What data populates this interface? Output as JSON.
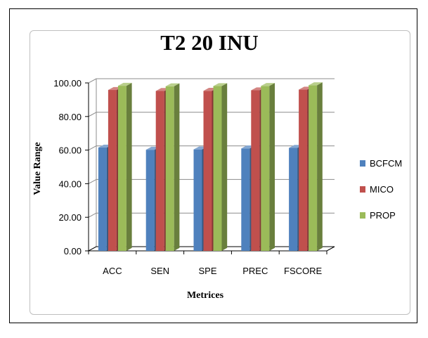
{
  "chart_data": {
    "type": "bar",
    "title": "T2 20 INU",
    "xlabel": "Metrices",
    "ylabel": "Value Range",
    "categories": [
      "ACC",
      "SEN",
      "SPE",
      "PREC",
      "FSCORE"
    ],
    "y_ticks": [
      "0.00",
      "20.00",
      "40.00",
      "60.00",
      "80.00",
      "100.00"
    ],
    "ylim": [
      0,
      100
    ],
    "grid": true,
    "legend_position": "right",
    "series": [
      {
        "name": "BCFCM",
        "color": "#4f81bd",
        "values": [
          61.5,
          60.2,
          60.4,
          61.0,
          61.3
        ]
      },
      {
        "name": "MICO",
        "color": "#c0504d",
        "values": [
          95.8,
          95.2,
          95.3,
          95.6,
          96.0
        ]
      },
      {
        "name": "PROP",
        "color": "#9bbb59",
        "values": [
          98.3,
          98.0,
          98.1,
          98.2,
          98.6
        ]
      }
    ]
  }
}
